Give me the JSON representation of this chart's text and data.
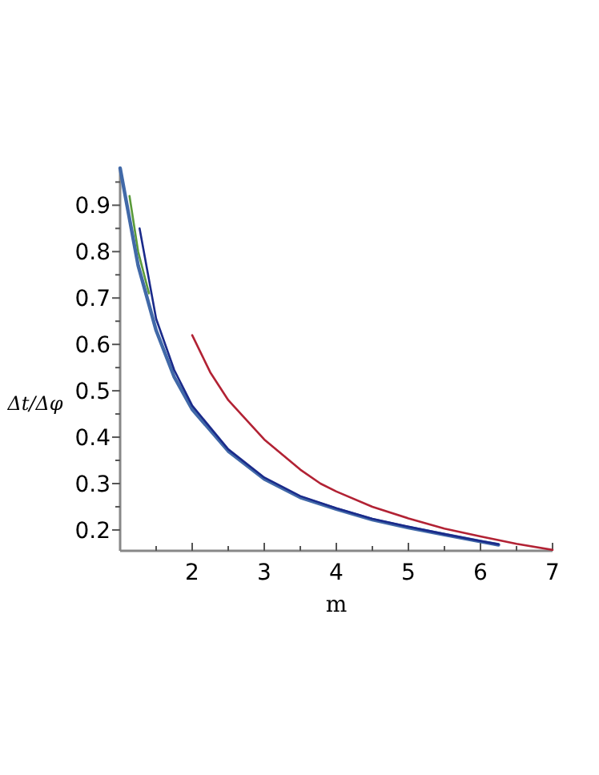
{
  "chart_data": {
    "type": "line",
    "xlabel": "m",
    "ylabel": "Δt/Δφ",
    "xlim": [
      1,
      7
    ],
    "ylim": [
      0.155,
      0.98
    ],
    "xticks": [
      {
        "value": 1.5,
        "label": null
      },
      2,
      {
        "value": 2.5,
        "label": null
      },
      3,
      {
        "value": 3.5,
        "label": null
      },
      4,
      {
        "value": 4.5,
        "label": null
      },
      5,
      {
        "value": 5.5,
        "label": null
      },
      6,
      {
        "value": 6.5,
        "label": null
      },
      7
    ],
    "yticks": [
      0.2,
      {
        "value": 0.25,
        "label": null
      },
      0.3,
      {
        "value": 0.35,
        "label": null
      },
      0.4,
      {
        "value": 0.45,
        "label": null
      },
      0.5,
      {
        "value": 0.55,
        "label": null
      },
      0.6,
      {
        "value": 0.65,
        "label": null
      },
      0.7,
      {
        "value": 0.75,
        "label": null
      },
      0.8,
      {
        "value": 0.85,
        "label": null
      },
      0.9,
      {
        "value": 0.95,
        "label": null
      }
    ],
    "grid": false,
    "marker": "none",
    "line_style": "solid",
    "series": [
      {
        "color": "#b22234",
        "x": [
          2,
          2.25,
          2.5,
          3,
          3.5,
          3.78,
          4,
          4.5,
          5,
          5.5,
          6,
          6.5,
          7
        ],
        "values": [
          0.62,
          0.54,
          0.48,
          0.395,
          0.33,
          0.3,
          0.283,
          0.25,
          0.225,
          0.203,
          0.186,
          0.17,
          0.157
        ]
      },
      {
        "color": "#5a9a3a",
        "x": [
          1.13,
          1.25,
          1.4
        ],
        "values": [
          0.92,
          0.8,
          0.71
        ]
      },
      {
        "color": "#4169a8",
        "x": [
          1,
          1.25,
          1.5,
          1.75,
          2,
          2.5,
          3,
          3.5,
          4,
          4.5,
          5,
          5.5,
          6,
          6.25
        ],
        "values": [
          0.98,
          0.77,
          0.63,
          0.53,
          0.46,
          0.37,
          0.31,
          0.27,
          0.245,
          0.222,
          0.205,
          0.19,
          0.175,
          0.168
        ]
      },
      {
        "color": "#1a2a8a",
        "x": [
          1.27,
          1.5,
          1.75,
          2,
          2.5,
          3,
          3.5,
          4,
          4.5,
          5,
          5.5,
          6,
          6.25
        ],
        "values": [
          0.85,
          0.655,
          0.545,
          0.468,
          0.374,
          0.313,
          0.273,
          0.247,
          0.224,
          0.207,
          0.191,
          0.176,
          0.169
        ]
      }
    ]
  }
}
